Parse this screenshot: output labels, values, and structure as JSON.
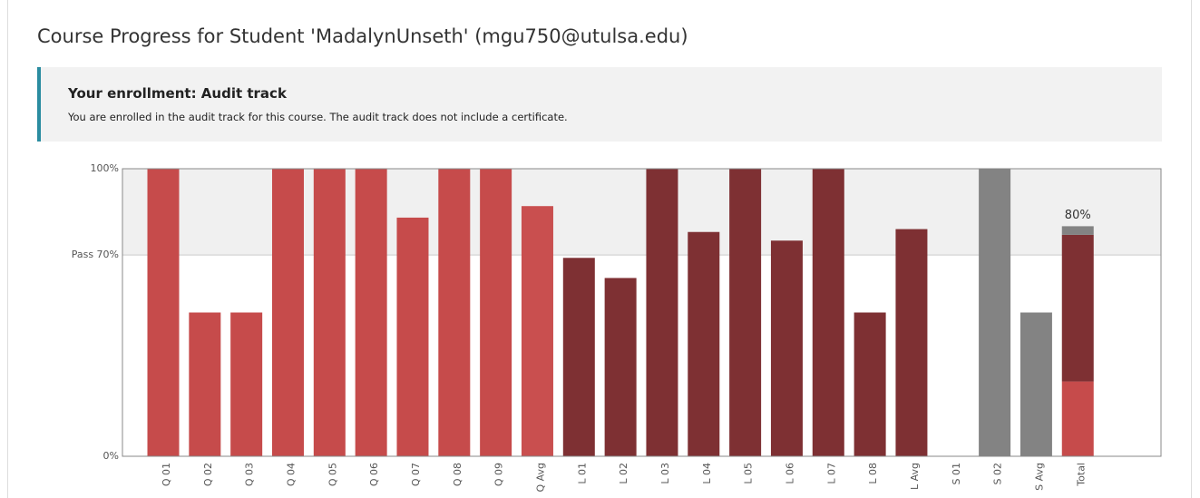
{
  "header": {
    "title": "Course Progress for Student 'MadalynUnseth' (mgu750@utulsa.edu)"
  },
  "banner": {
    "title": "Your enrollment: Audit track",
    "text": "You are enrolled in the audit track for this course. The audit track does not include a certificate."
  },
  "chart_data": {
    "type": "bar",
    "categories": [
      "Q 01",
      "Q 02",
      "Q 03",
      "Q 04",
      "Q 05",
      "Q 06",
      "Q 07",
      "Q 08",
      "Q 09",
      "Q Avg",
      "L 01",
      "L 02",
      "L 03",
      "L 04",
      "L 05",
      "L 06",
      "L 07",
      "L 08",
      "L Avg",
      "S 01",
      "S 02",
      "S Avg",
      "Total"
    ],
    "values": [
      100,
      50,
      50,
      100,
      100,
      100,
      83,
      100,
      100,
      87,
      69,
      62,
      100,
      78,
      100,
      75,
      100,
      50,
      79,
      0,
      100,
      50,
      80
    ],
    "value_labels": [
      null,
      null,
      null,
      null,
      null,
      null,
      null,
      null,
      null,
      null,
      null,
      null,
      null,
      null,
      null,
      null,
      null,
      null,
      null,
      null,
      null,
      null,
      "80%"
    ],
    "bar_colors": [
      "#c64b4b",
      "#c64b4b",
      "#c64b4b",
      "#c64b4b",
      "#c64b4b",
      "#c64b4b",
      "#c64b4b",
      "#c64b4b",
      "#c64b4b",
      "#c94f4f",
      "#7e3033",
      "#7e3033",
      "#7e3033",
      "#7e3033",
      "#7e3033",
      "#7e3033",
      "#7e3033",
      "#7e3033",
      "#7e3033",
      "#838383",
      "#838383",
      "#838383"
    ],
    "total_segments": [
      26,
      51,
      3
    ],
    "total_segment_colors": [
      "#c64b4b",
      "#7e3033",
      "#838383"
    ],
    "ylim": [
      0,
      100
    ],
    "yticks": [
      {
        "value": 0,
        "label": "0%"
      },
      {
        "value": 70,
        "label": "Pass 70%"
      },
      {
        "value": 100,
        "label": "100%"
      }
    ],
    "pass_band_color": "#f0f0f0"
  }
}
